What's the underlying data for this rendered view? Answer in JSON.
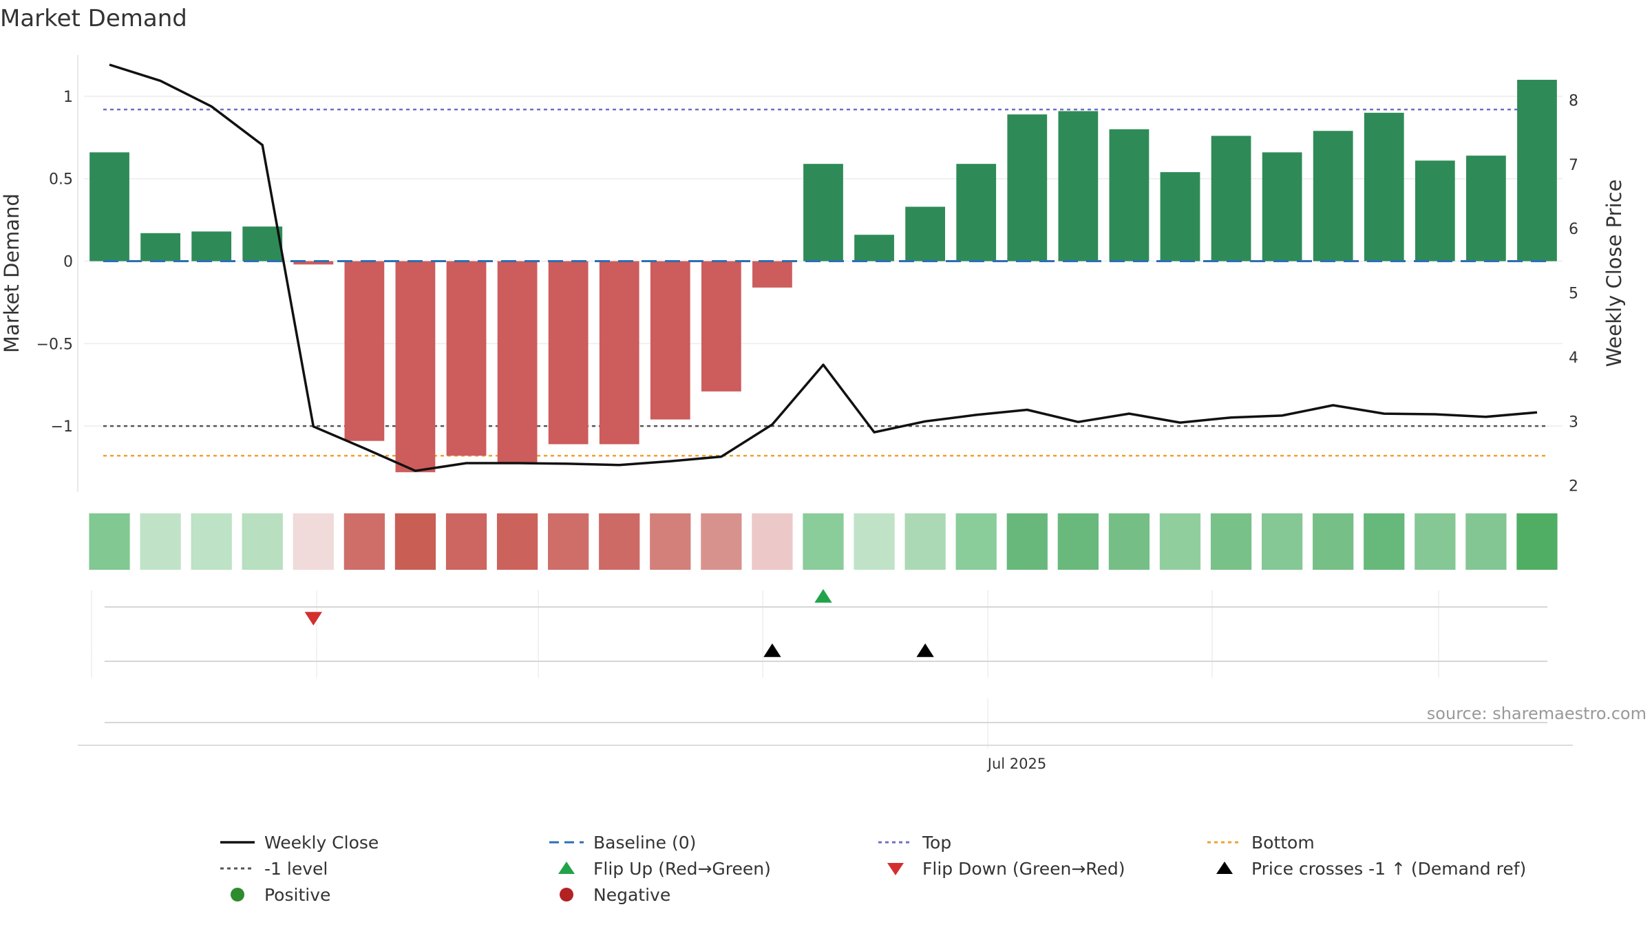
{
  "chart_data": {
    "type": "bar",
    "title": "Market Demand",
    "ylabel": "Market Demand",
    "y2label": "Weekly Close Price",
    "ylim": [
      -1.4,
      1.25
    ],
    "y2lim": [
      1.9,
      8.7
    ],
    "yticks": [
      1,
      0.5,
      0,
      -0.5,
      -1
    ],
    "ytick_labels": [
      "1",
      "0.5",
      "0",
      "−0.5",
      "−1"
    ],
    "y2ticks": [
      8,
      7,
      6,
      5,
      4,
      3,
      2
    ],
    "x_date_label": "Jul 2025",
    "x_date_label_index": 17.8,
    "source_text": "source: sharemaestro.com",
    "grid": true,
    "colors": {
      "positive": "#2e8b57",
      "negative": "#cd5c5c",
      "price_line": "#111111",
      "baseline": "#2c6fb3",
      "top": "#6f6fc9",
      "minus1": "#555555",
      "bottom": "#f0a030",
      "flip_up": "#22a34a",
      "flip_down": "#d32f2f",
      "cross": "#000000"
    },
    "demand": [
      0.66,
      0.17,
      0.18,
      0.21,
      -0.02,
      -1.09,
      -1.28,
      -1.18,
      -1.22,
      -1.11,
      -1.11,
      -0.96,
      -0.79,
      -0.16,
      0.59,
      0.16,
      0.33,
      0.59,
      0.89,
      0.91,
      0.8,
      0.54,
      0.76,
      0.66,
      0.79,
      0.9,
      0.61,
      0.64,
      1.1
    ],
    "price": [
      8.55,
      8.3,
      7.9,
      7.3,
      2.92,
      2.58,
      2.23,
      2.35,
      2.35,
      2.34,
      2.32,
      2.38,
      2.45,
      2.95,
      3.88,
      2.83,
      3.0,
      3.1,
      3.18,
      2.99,
      3.12,
      2.98,
      3.06,
      3.09,
      3.25,
      3.12,
      3.11,
      3.07,
      3.14
    ],
    "reference_lines": {
      "baseline": 0,
      "top": 0.92,
      "minus1": -1,
      "bottom": -1.18
    },
    "heat_colors": [
      "#82c893",
      "#c0e3c8",
      "#bde2c5",
      "#b7dfc0",
      "#f0dada",
      "#cf6e69",
      "#c95e55",
      "#cd6661",
      "#cc625c",
      "#cf6e69",
      "#cd6a66",
      "#d3807a",
      "#d8928d",
      "#ecc9c8",
      "#8acc9a",
      "#c0e3c8",
      "#abd9b5",
      "#8acc9a",
      "#68b87c",
      "#69b97d",
      "#75bf86",
      "#91ce9e",
      "#78c188",
      "#85c795",
      "#76bf87",
      "#67b87b",
      "#85c795",
      "#84c693",
      "#50ae64"
    ],
    "flip_up_index": [
      14
    ],
    "flip_down_index": [
      4
    ],
    "price_cross_index": [
      13,
      16
    ],
    "legend": [
      {
        "label": "Weekly Close",
        "symbol": "line-solid",
        "color": "#111111"
      },
      {
        "label": "Baseline (0)",
        "symbol": "line-dash",
        "color": "#2c6fb3"
      },
      {
        "label": "Top",
        "symbol": "line-dot",
        "color": "#6f6fc9"
      },
      {
        "label": "Bottom",
        "symbol": "line-dot",
        "color": "#f0a030"
      },
      {
        "label": "-1 level",
        "symbol": "line-dot",
        "color": "#555555"
      },
      {
        "label": "Flip Up (Red→Green)",
        "symbol": "tri-up",
        "color": "#22a34a"
      },
      {
        "label": "Flip Down (Green→Red)",
        "symbol": "tri-down",
        "color": "#d32f2f"
      },
      {
        "label": "Price crosses -1 ↑ (Demand ref)",
        "symbol": "tri-up",
        "color": "#000000"
      },
      {
        "label": "Positive",
        "symbol": "dot",
        "color": "#2e8b2e"
      },
      {
        "label": "Negative",
        "symbol": "dot",
        "color": "#b22222"
      }
    ]
  }
}
